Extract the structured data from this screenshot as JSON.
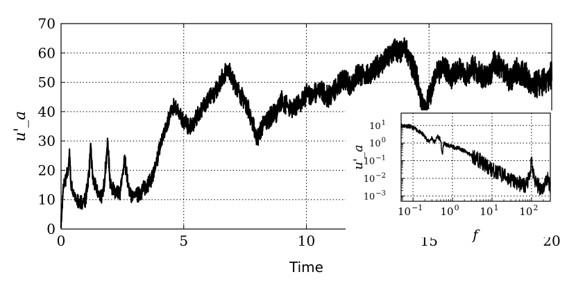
{
  "chart_data": [
    {
      "type": "line",
      "xlabel": "Time",
      "ylabel": "u'_a",
      "xlim": [
        0,
        20
      ],
      "ylim": [
        0,
        70
      ],
      "x_ticks": [
        "0",
        "5",
        "10",
        "15",
        "20"
      ],
      "y_ticks": [
        "0",
        "10",
        "20",
        "30",
        "40",
        "50",
        "60",
        "70"
      ],
      "grid": true,
      "line_color": "#000000",
      "series": [
        {
          "x": [
            0,
            0.1,
            0.2,
            0.3,
            0.35,
            0.4,
            0.6,
            0.8,
            1.0,
            1.15,
            1.2,
            1.3,
            1.5,
            1.7,
            1.85,
            1.9,
            2.0,
            2.2,
            2.4,
            2.6,
            2.65,
            2.8,
            3.0,
            3.2,
            3.4,
            3.6,
            3.8,
            4.0,
            4.2,
            4.4,
            4.6,
            4.8,
            5.0,
            5.2,
            5.4,
            5.6,
            5.8,
            6.0,
            6.3,
            6.6,
            6.8,
            7.0,
            7.3,
            7.6,
            7.9,
            8.0,
            8.2,
            8.5,
            8.8,
            9.0,
            9.3,
            9.6,
            9.9,
            10.0,
            10.3,
            10.6,
            10.9,
            11.2,
            11.5,
            11.8,
            12.1,
            12.4,
            12.7,
            13.0,
            13.3,
            13.6,
            13.9,
            14.0,
            14.2,
            14.5,
            14.7,
            14.8,
            15.0,
            15.3,
            15.6,
            15.9,
            16.2,
            16.5,
            16.8,
            17.1,
            17.4,
            17.7,
            18.0,
            18.3,
            18.6,
            18.9,
            19.2,
            19.5,
            19.8,
            20.0
          ],
          "y": [
            2,
            15,
            17,
            21,
            26,
            15,
            10,
            9,
            10,
            20,
            28,
            17,
            12,
            11,
            24,
            30,
            16,
            12,
            12,
            24,
            20,
            12,
            11,
            12,
            14,
            16,
            19,
            27,
            33,
            38,
            42,
            39,
            37,
            35,
            36,
            39,
            42,
            44,
            47,
            52,
            55,
            51,
            46,
            42,
            33,
            31,
            35,
            38,
            40,
            44,
            41,
            42,
            44,
            46,
            46,
            47,
            45,
            48,
            51,
            49,
            53,
            52,
            54,
            56,
            58,
            61,
            60,
            63,
            58,
            52,
            43,
            40,
            45,
            53,
            55,
            52,
            54,
            53,
            55,
            53,
            51,
            57,
            55,
            51,
            54,
            53,
            48,
            50,
            50,
            53
          ]
        }
      ]
    },
    {
      "type": "line",
      "xlabel": "f",
      "ylabel": "u'_a",
      "xscale": "log",
      "yscale": "log",
      "xlim": [
        0.05,
        300
      ],
      "ylim": [
        0.0005,
        50
      ],
      "grid": true,
      "line_color": "#000000",
      "series": [
        {
          "x": [
            0.05,
            0.08,
            0.12,
            0.18,
            0.25,
            0.3,
            0.35,
            0.42,
            0.5,
            0.55,
            0.6,
            0.7,
            1.0,
            1.5,
            2,
            3,
            5,
            8,
            12,
            20,
            30,
            50,
            70,
            90,
            100,
            110,
            130,
            160,
            200,
            250,
            300
          ],
          "y": [
            10,
            9,
            6,
            3,
            1.2,
            2,
            1.1,
            2.5,
            1.5,
            0.2,
            1.0,
            0.8,
            0.6,
            0.5,
            0.35,
            0.2,
            0.1,
            0.04,
            0.025,
            0.015,
            0.008,
            0.005,
            0.004,
            0.01,
            0.1,
            0.02,
            0.005,
            0.003,
            0.003,
            0.01,
            0.004
          ]
        }
      ],
      "x_ticks": [
        "10",
        "10",
        "10",
        "10"
      ],
      "x_tick_exponents": [
        "−1",
        "0",
        "1",
        "2"
      ],
      "y_ticks": [
        "10",
        "10",
        "10",
        "10",
        "10"
      ],
      "y_tick_exponents": [
        "1",
        "0",
        "−1",
        "−2",
        "−3"
      ]
    }
  ]
}
